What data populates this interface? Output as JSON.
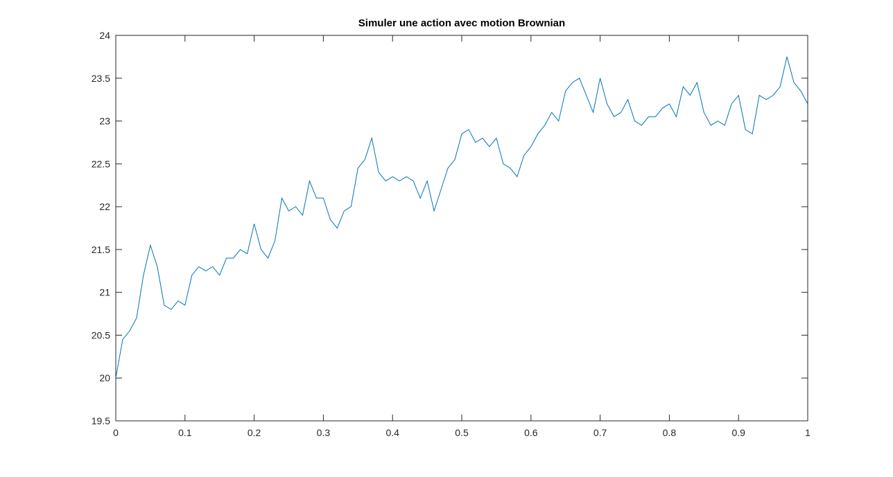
{
  "chart_data": {
    "type": "line",
    "title": "Simuler une action avec motion Brownian",
    "x": [
      0,
      0.01,
      0.02,
      0.03,
      0.04,
      0.05,
      0.06,
      0.07,
      0.08,
      0.09,
      0.1,
      0.11,
      0.12,
      0.13,
      0.14,
      0.15,
      0.16,
      0.17,
      0.18,
      0.19,
      0.2,
      0.21,
      0.22,
      0.23,
      0.24,
      0.25,
      0.26,
      0.27,
      0.28,
      0.29,
      0.3,
      0.31,
      0.32,
      0.33,
      0.34,
      0.35,
      0.36,
      0.37,
      0.38,
      0.39,
      0.4,
      0.41,
      0.42,
      0.43,
      0.44,
      0.45,
      0.46,
      0.47,
      0.48,
      0.49,
      0.5,
      0.51,
      0.52,
      0.53,
      0.54,
      0.55,
      0.56,
      0.57,
      0.58,
      0.59,
      0.6,
      0.61,
      0.62,
      0.63,
      0.64,
      0.65,
      0.66,
      0.67,
      0.68,
      0.69,
      0.7,
      0.71,
      0.72,
      0.73,
      0.74,
      0.75,
      0.76,
      0.77,
      0.78,
      0.79,
      0.8,
      0.81,
      0.82,
      0.83,
      0.84,
      0.85,
      0.86,
      0.87,
      0.88,
      0.89,
      0.9,
      0.91,
      0.92,
      0.93,
      0.94,
      0.95,
      0.96,
      0.97,
      0.98,
      0.99,
      1
    ],
    "series": [
      {
        "color": "#0072BD",
        "values": [
          20.0,
          20.45,
          20.55,
          20.7,
          21.2,
          21.55,
          21.3,
          20.85,
          20.8,
          20.9,
          20.85,
          21.2,
          21.3,
          21.25,
          21.3,
          21.2,
          21.4,
          21.4,
          21.5,
          21.45,
          21.8,
          21.5,
          21.4,
          21.6,
          22.1,
          21.95,
          22.0,
          21.9,
          22.3,
          22.1,
          22.1,
          21.85,
          21.75,
          21.95,
          22.0,
          22.45,
          22.55,
          22.8,
          22.4,
          22.3,
          22.35,
          22.3,
          22.35,
          22.3,
          22.1,
          22.3,
          21.95,
          22.2,
          22.45,
          22.55,
          22.85,
          22.9,
          22.75,
          22.8,
          22.7,
          22.8,
          22.5,
          22.45,
          22.35,
          22.6,
          22.7,
          22.85,
          22.95,
          23.1,
          23.0,
          23.35,
          23.45,
          23.5,
          23.3,
          23.1,
          23.5,
          23.2,
          23.05,
          23.1,
          23.25,
          23.0,
          22.95,
          23.05,
          23.05,
          23.15,
          23.2,
          23.05,
          23.4,
          23.3,
          23.45,
          23.1,
          22.95,
          23.0,
          22.95,
          23.2,
          23.3,
          22.9,
          22.85,
          23.3,
          23.25,
          23.3,
          23.4,
          23.75,
          23.45,
          23.35,
          23.2
        ]
      }
    ],
    "xlim": [
      0,
      1
    ],
    "xticks": [
      0,
      0.1,
      0.2,
      0.3,
      0.4,
      0.5,
      0.6,
      0.7,
      0.8,
      0.9,
      1
    ],
    "ylim": [
      19.5,
      24
    ],
    "yticks": [
      19.5,
      20,
      20.5,
      21,
      21.5,
      22,
      22.5,
      23,
      23.5,
      24
    ]
  }
}
